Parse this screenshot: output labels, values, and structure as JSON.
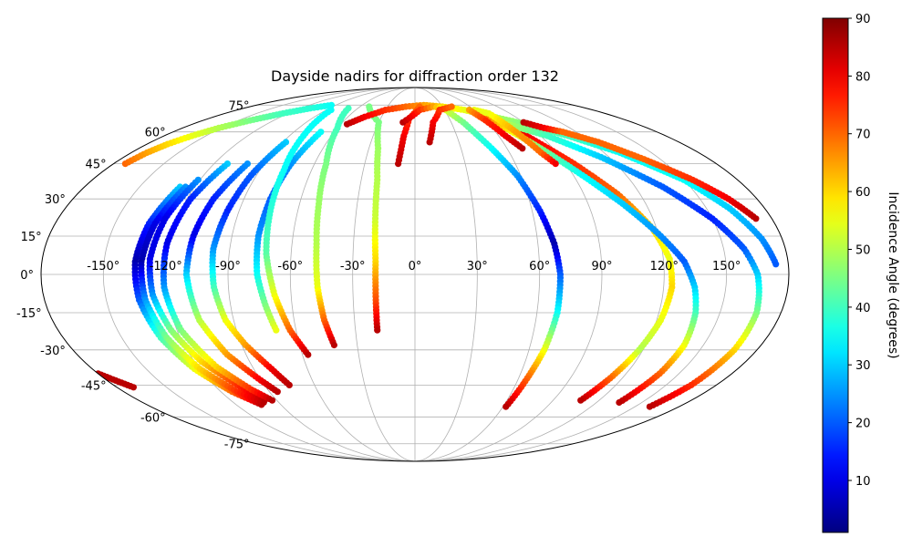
{
  "chart_data": {
    "type": "scatter",
    "title": "Dayside nadirs for diffraction order 132",
    "projection": "mollweide",
    "grid": true,
    "lon_tick_labels": [
      "-150°",
      "-120°",
      "-90°",
      "-60°",
      "-30°",
      "0°",
      "30°",
      "60°",
      "90°",
      "120°",
      "150°"
    ],
    "lat_tick_labels": [
      "-75°",
      "-60°",
      "-45°",
      "-30°",
      "-15°",
      "0°",
      "15°",
      "30°",
      "45°",
      "60°",
      "75°"
    ],
    "colorbar": {
      "label": "Incidence Angle (degrees)",
      "range": [
        1,
        90
      ],
      "tick_labels": [
        "10",
        "20",
        "30",
        "40",
        "50",
        "60",
        "70",
        "80",
        "90"
      ],
      "colormap": "jet"
    },
    "tracks": [
      {
        "points": [
          [
            -128,
            35,
            30
          ],
          [
            -133,
            20,
            15
          ],
          [
            -135,
            5,
            5
          ],
          [
            -134,
            -10,
            20
          ],
          [
            -130,
            -25,
            40
          ],
          [
            -123,
            -38,
            55
          ],
          [
            -113,
            -48,
            70
          ],
          [
            -103,
            -54,
            85
          ]
        ]
      },
      {
        "points": [
          [
            -125,
            35,
            25
          ],
          [
            -130,
            20,
            10
          ],
          [
            -132,
            5,
            5
          ],
          [
            -131,
            -10,
            25
          ],
          [
            -127,
            -25,
            45
          ],
          [
            -120,
            -38,
            60
          ],
          [
            -110,
            -48,
            75
          ],
          [
            -100,
            -53,
            85
          ]
        ]
      },
      {
        "points": [
          [
            -121,
            38,
            25
          ],
          [
            -126,
            22,
            10
          ],
          [
            -128,
            6,
            10
          ],
          [
            -127,
            -8,
            25
          ],
          [
            -123,
            -22,
            45
          ],
          [
            -116,
            -35,
            60
          ],
          [
            -106,
            -45,
            75
          ],
          [
            -98,
            -52,
            85
          ]
        ]
      },
      {
        "points": [
          [
            -112,
            45,
            30
          ],
          [
            -118,
            30,
            15
          ],
          [
            -121,
            12,
            10
          ],
          [
            -121,
            -5,
            25
          ],
          [
            -118,
            -22,
            45
          ],
          [
            -110,
            -37,
            60
          ],
          [
            -100,
            -47,
            75
          ],
          [
            -93,
            -52,
            85
          ]
        ]
      },
      {
        "points": [
          [
            -100,
            45,
            25
          ],
          [
            -106,
            30,
            15
          ],
          [
            -109,
            15,
            10
          ],
          [
            -110,
            0,
            30
          ],
          [
            -107,
            -18,
            50
          ],
          [
            -100,
            -32,
            65
          ],
          [
            -90,
            -43,
            80
          ],
          [
            -85,
            -48,
            85
          ]
        ]
      },
      {
        "points": [
          [
            -88,
            55,
            30
          ],
          [
            -93,
            40,
            20
          ],
          [
            -96,
            25,
            15
          ],
          [
            -98,
            10,
            25
          ],
          [
            -97,
            -5,
            40
          ],
          [
            -94,
            -18,
            55
          ],
          [
            -88,
            -28,
            65
          ],
          [
            -80,
            -38,
            80
          ],
          [
            -75,
            -45,
            85
          ]
        ]
      },
      {
        "points": [
          [
            -70,
            60,
            35
          ],
          [
            -74,
            45,
            25
          ],
          [
            -76,
            30,
            20
          ],
          [
            -77,
            15,
            25
          ],
          [
            -76,
            0,
            35
          ],
          [
            -73,
            -12,
            45
          ],
          [
            -70,
            -22,
            55
          ]
        ]
      },
      {
        "points": [
          [
            -85,
            72,
            35
          ],
          [
            -80,
            58,
            35
          ],
          [
            -76,
            42,
            35
          ],
          [
            -74,
            25,
            38
          ],
          [
            -72,
            8,
            42
          ],
          [
            -68,
            -8,
            55
          ],
          [
            -63,
            -22,
            70
          ],
          [
            -57,
            -32,
            85
          ]
        ]
      },
      {
        "points": [
          [
            -70,
            73,
            40
          ],
          [
            -60,
            62,
            40
          ],
          [
            -53,
            45,
            45
          ],
          [
            -50,
            28,
            48
          ],
          [
            -48,
            12,
            50
          ],
          [
            -47,
            -5,
            55
          ],
          [
            -45,
            -18,
            70
          ],
          [
            -42,
            -28,
            85
          ]
        ]
      },
      {
        "points": [
          [
            -50,
            74,
            45
          ],
          [
            -30,
            65,
            45
          ],
          [
            -24,
            52,
            48
          ],
          [
            -21,
            38,
            50
          ],
          [
            -20,
            22,
            52
          ],
          [
            -19,
            5,
            60
          ],
          [
            -19,
            -10,
            72
          ],
          [
            -19,
            -22,
            85
          ]
        ]
      },
      {
        "points": [
          [
            -55,
            64,
            85
          ],
          [
            -45,
            68,
            80
          ],
          [
            -30,
            72,
            75
          ],
          [
            -10,
            74,
            70
          ],
          [
            10,
            75,
            65
          ],
          [
            30,
            74,
            60
          ],
          [
            50,
            72,
            55
          ],
          [
            70,
            68,
            50
          ],
          [
            90,
            64,
            45
          ],
          [
            110,
            58,
            40
          ],
          [
            130,
            50,
            35
          ],
          [
            150,
            38,
            35
          ],
          [
            162,
            26,
            30
          ],
          [
            170,
            14,
            25
          ],
          [
            174,
            4,
            20
          ]
        ]
      },
      {
        "points": [
          [
            -10,
            45,
            85
          ],
          [
            -8,
            58,
            80
          ],
          [
            -5,
            67,
            75
          ],
          [
            5,
            74,
            70
          ]
        ]
      },
      {
        "points": [
          [
            -10,
            65,
            85
          ],
          [
            5,
            72,
            75
          ],
          [
            20,
            74,
            65
          ],
          [
            30,
            73,
            55
          ],
          [
            40,
            65,
            45
          ],
          [
            50,
            52,
            35
          ],
          [
            58,
            40,
            25
          ],
          [
            64,
            25,
            15
          ],
          [
            68,
            12,
            5
          ],
          [
            70,
            0,
            20
          ],
          [
            70,
            -15,
            35
          ],
          [
            68,
            -30,
            55
          ],
          [
            65,
            -42,
            70
          ],
          [
            62,
            -55,
            85
          ]
        ]
      },
      {
        "points": [
          [
            10,
            55,
            85
          ],
          [
            15,
            65,
            80
          ],
          [
            25,
            72,
            75
          ],
          [
            40,
            74,
            70
          ]
        ]
      },
      {
        "points": [
          [
            60,
            70,
            85
          ],
          [
            70,
            65,
            85
          ],
          [
            80,
            58,
            80
          ],
          [
            95,
            45,
            75
          ],
          [
            108,
            32,
            70
          ],
          [
            118,
            18,
            60
          ],
          [
            123,
            6,
            55
          ],
          [
            124,
            -5,
            60
          ],
          [
            122,
            -18,
            55
          ],
          [
            118,
            -30,
            50
          ],
          [
            113,
            -42,
            70
          ],
          [
            108,
            -52,
            85
          ]
        ]
      },
      {
        "points": [
          [
            60,
            68,
            70
          ],
          [
            70,
            62,
            60
          ],
          [
            82,
            52,
            45
          ],
          [
            95,
            40,
            35
          ],
          [
            108,
            28,
            30
          ],
          [
            120,
            16,
            25
          ],
          [
            130,
            5,
            20
          ],
          [
            135,
            -5,
            30
          ],
          [
            138,
            -15,
            40
          ],
          [
            140,
            -28,
            55
          ],
          [
            139,
            -40,
            70
          ],
          [
            135,
            -53,
            85
          ]
        ]
      },
      {
        "points": [
          [
            75,
            64,
            50
          ],
          [
            95,
            58,
            40
          ],
          [
            115,
            48,
            30
          ],
          [
            135,
            35,
            20
          ],
          [
            150,
            22,
            15
          ],
          [
            160,
            10,
            20
          ],
          [
            165,
            0,
            30
          ],
          [
            168,
            -15,
            45
          ],
          [
            168,
            -30,
            60
          ],
          [
            165,
            -45,
            75
          ],
          [
            160,
            -55,
            85
          ]
        ]
      },
      {
        "points": [
          [
            60,
            72,
            55
          ],
          [
            70,
            70,
            55
          ],
          [
            75,
            60,
            65
          ],
          [
            80,
            50,
            70
          ],
          [
            84,
            45,
            80
          ]
        ]
      },
      {
        "points": [
          [
            55,
            72,
            65
          ],
          [
            60,
            66,
            75
          ],
          [
            65,
            58,
            80
          ],
          [
            70,
            52,
            85
          ]
        ]
      },
      {
        "points": [
          [
            90,
            65,
            85
          ],
          [
            100,
            62,
            80
          ],
          [
            110,
            60,
            70
          ],
          [
            125,
            55,
            70
          ],
          [
            140,
            47,
            70
          ],
          [
            155,
            38,
            75
          ],
          [
            165,
            30,
            80
          ],
          [
            172,
            22,
            85
          ]
        ]
      },
      {
        "points": [
          [
            -173,
            45,
            70
          ],
          [
            -170,
            50,
            65
          ],
          [
            -166,
            54,
            60
          ],
          [
            -160,
            58,
            55
          ],
          [
            -152,
            62,
            50
          ],
          [
            -140,
            66,
            45
          ],
          [
            -125,
            70,
            40
          ],
          [
            -110,
            73,
            38
          ],
          [
            -95,
            75,
            35
          ]
        ]
      },
      {
        "points": [
          [
            -180,
            -40,
            85
          ],
          [
            -175,
            -43,
            85
          ],
          [
            -170,
            -46,
            85
          ]
        ]
      }
    ]
  }
}
